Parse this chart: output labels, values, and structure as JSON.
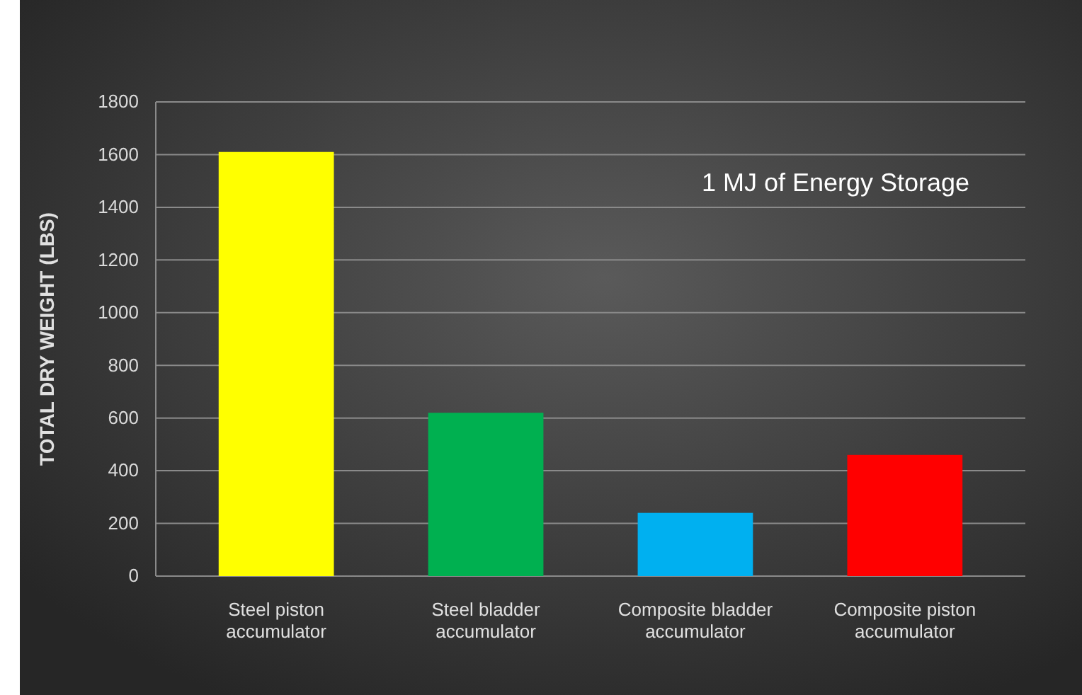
{
  "chart_data": {
    "type": "bar",
    "categories": [
      "Steel piston accumulator",
      "Steel bladder accumulator",
      "Composite bladder accumulator",
      "Composite piston accumulator"
    ],
    "values": [
      1610,
      620,
      240,
      460
    ],
    "colors": [
      "#ffff00",
      "#00b050",
      "#00b0f0",
      "#ff0000"
    ],
    "ylabel": "TOTAL DRY WEIGHT (LBS)",
    "ylim": [
      0,
      1800
    ],
    "yticks": [
      0,
      200,
      400,
      600,
      800,
      1000,
      1200,
      1400,
      1600,
      1800
    ],
    "grid": "y",
    "annotations": [
      "1 MJ of Energy Storage"
    ]
  }
}
